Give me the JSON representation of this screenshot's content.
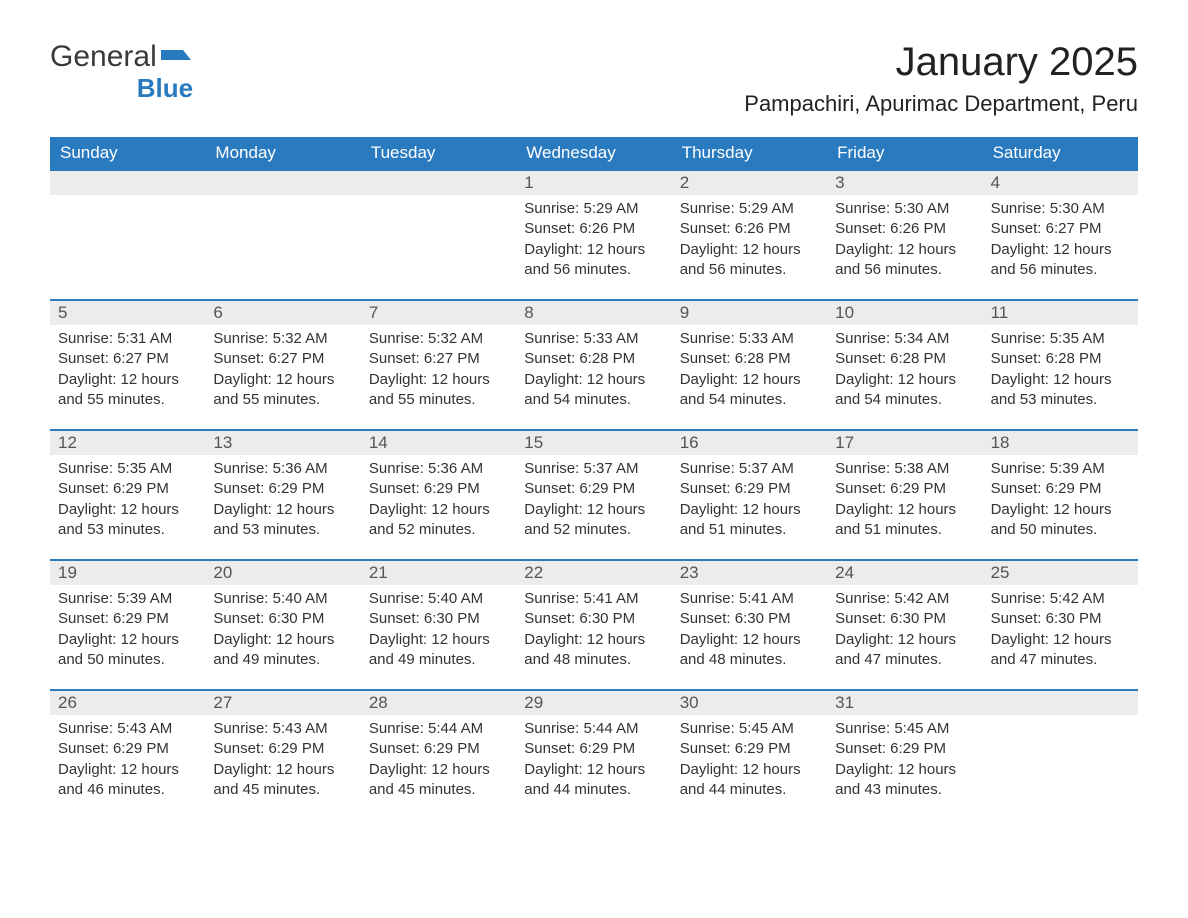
{
  "brand": {
    "line1": "General",
    "line2": "Blue"
  },
  "title": "January 2025",
  "location": "Pampachiri, Apurimac Department, Peru",
  "colors": {
    "header_bg": "#2a7ac0",
    "header_text": "#ffffff",
    "daynum_bg": "#ececec",
    "daynum_text": "#555555",
    "body_text": "#333333",
    "row_border": "#2a7ac0",
    "page_bg": "#ffffff",
    "logo_blue": "#2a7ac0",
    "logo_gray": "#3a3a3a"
  },
  "typography": {
    "title_fontsize": 40,
    "location_fontsize": 22,
    "header_fontsize": 17,
    "daynum_fontsize": 17,
    "body_fontsize": 15,
    "font_family": "Arial"
  },
  "layout": {
    "columns": 7,
    "rows": 5,
    "first_weekday_index": 3
  },
  "weekdays": [
    "Sunday",
    "Monday",
    "Tuesday",
    "Wednesday",
    "Thursday",
    "Friday",
    "Saturday"
  ],
  "days": [
    {
      "n": 1,
      "sunrise": "5:29 AM",
      "sunset": "6:26 PM",
      "daylight": "12 hours and 56 minutes."
    },
    {
      "n": 2,
      "sunrise": "5:29 AM",
      "sunset": "6:26 PM",
      "daylight": "12 hours and 56 minutes."
    },
    {
      "n": 3,
      "sunrise": "5:30 AM",
      "sunset": "6:26 PM",
      "daylight": "12 hours and 56 minutes."
    },
    {
      "n": 4,
      "sunrise": "5:30 AM",
      "sunset": "6:27 PM",
      "daylight": "12 hours and 56 minutes."
    },
    {
      "n": 5,
      "sunrise": "5:31 AM",
      "sunset": "6:27 PM",
      "daylight": "12 hours and 55 minutes."
    },
    {
      "n": 6,
      "sunrise": "5:32 AM",
      "sunset": "6:27 PM",
      "daylight": "12 hours and 55 minutes."
    },
    {
      "n": 7,
      "sunrise": "5:32 AM",
      "sunset": "6:27 PM",
      "daylight": "12 hours and 55 minutes."
    },
    {
      "n": 8,
      "sunrise": "5:33 AM",
      "sunset": "6:28 PM",
      "daylight": "12 hours and 54 minutes."
    },
    {
      "n": 9,
      "sunrise": "5:33 AM",
      "sunset": "6:28 PM",
      "daylight": "12 hours and 54 minutes."
    },
    {
      "n": 10,
      "sunrise": "5:34 AM",
      "sunset": "6:28 PM",
      "daylight": "12 hours and 54 minutes."
    },
    {
      "n": 11,
      "sunrise": "5:35 AM",
      "sunset": "6:28 PM",
      "daylight": "12 hours and 53 minutes."
    },
    {
      "n": 12,
      "sunrise": "5:35 AM",
      "sunset": "6:29 PM",
      "daylight": "12 hours and 53 minutes."
    },
    {
      "n": 13,
      "sunrise": "5:36 AM",
      "sunset": "6:29 PM",
      "daylight": "12 hours and 53 minutes."
    },
    {
      "n": 14,
      "sunrise": "5:36 AM",
      "sunset": "6:29 PM",
      "daylight": "12 hours and 52 minutes."
    },
    {
      "n": 15,
      "sunrise": "5:37 AM",
      "sunset": "6:29 PM",
      "daylight": "12 hours and 52 minutes."
    },
    {
      "n": 16,
      "sunrise": "5:37 AM",
      "sunset": "6:29 PM",
      "daylight": "12 hours and 51 minutes."
    },
    {
      "n": 17,
      "sunrise": "5:38 AM",
      "sunset": "6:29 PM",
      "daylight": "12 hours and 51 minutes."
    },
    {
      "n": 18,
      "sunrise": "5:39 AM",
      "sunset": "6:29 PM",
      "daylight": "12 hours and 50 minutes."
    },
    {
      "n": 19,
      "sunrise": "5:39 AM",
      "sunset": "6:29 PM",
      "daylight": "12 hours and 50 minutes."
    },
    {
      "n": 20,
      "sunrise": "5:40 AM",
      "sunset": "6:30 PM",
      "daylight": "12 hours and 49 minutes."
    },
    {
      "n": 21,
      "sunrise": "5:40 AM",
      "sunset": "6:30 PM",
      "daylight": "12 hours and 49 minutes."
    },
    {
      "n": 22,
      "sunrise": "5:41 AM",
      "sunset": "6:30 PM",
      "daylight": "12 hours and 48 minutes."
    },
    {
      "n": 23,
      "sunrise": "5:41 AM",
      "sunset": "6:30 PM",
      "daylight": "12 hours and 48 minutes."
    },
    {
      "n": 24,
      "sunrise": "5:42 AM",
      "sunset": "6:30 PM",
      "daylight": "12 hours and 47 minutes."
    },
    {
      "n": 25,
      "sunrise": "5:42 AM",
      "sunset": "6:30 PM",
      "daylight": "12 hours and 47 minutes."
    },
    {
      "n": 26,
      "sunrise": "5:43 AM",
      "sunset": "6:29 PM",
      "daylight": "12 hours and 46 minutes."
    },
    {
      "n": 27,
      "sunrise": "5:43 AM",
      "sunset": "6:29 PM",
      "daylight": "12 hours and 45 minutes."
    },
    {
      "n": 28,
      "sunrise": "5:44 AM",
      "sunset": "6:29 PM",
      "daylight": "12 hours and 45 minutes."
    },
    {
      "n": 29,
      "sunrise": "5:44 AM",
      "sunset": "6:29 PM",
      "daylight": "12 hours and 44 minutes."
    },
    {
      "n": 30,
      "sunrise": "5:45 AM",
      "sunset": "6:29 PM",
      "daylight": "12 hours and 44 minutes."
    },
    {
      "n": 31,
      "sunrise": "5:45 AM",
      "sunset": "6:29 PM",
      "daylight": "12 hours and 43 minutes."
    }
  ],
  "labels": {
    "sunrise": "Sunrise: ",
    "sunset": "Sunset: ",
    "daylight": "Daylight: "
  }
}
